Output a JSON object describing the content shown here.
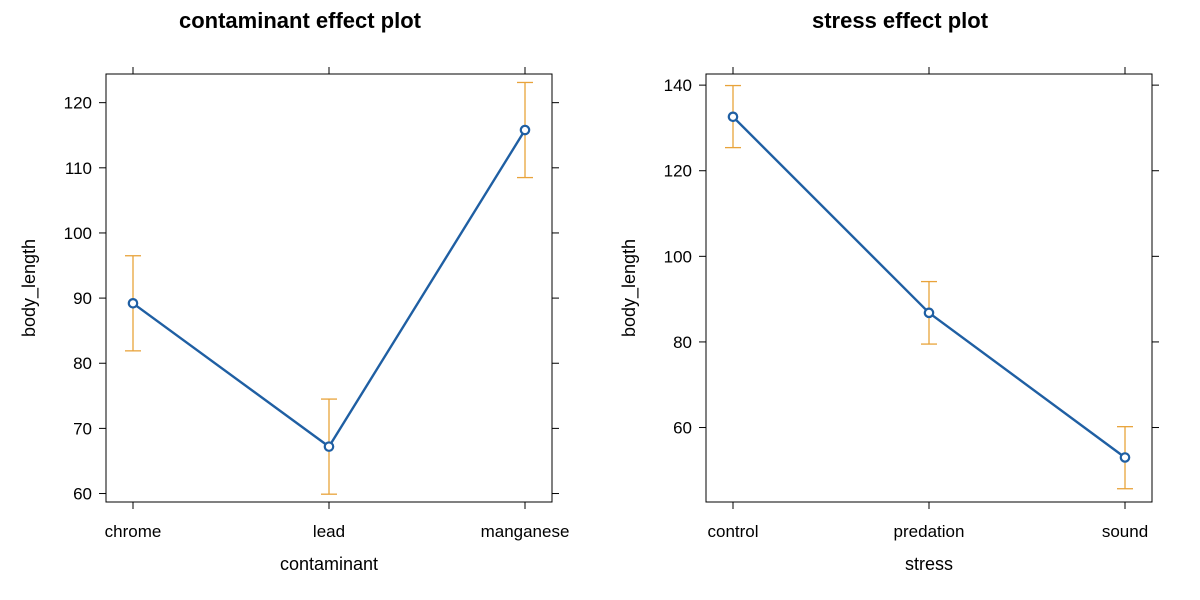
{
  "colors": {
    "line": "#1f5fa3",
    "errorbar": "#e8a33a",
    "frame": "#000000",
    "background": "#ffffff"
  },
  "chart_data": [
    {
      "type": "line",
      "title": "contaminant effect plot",
      "xlabel": "contaminant",
      "ylabel": "body_length",
      "categories": [
        "chrome",
        "lead",
        "manganese"
      ],
      "series": [
        {
          "values": [
            89.2,
            67.2,
            115.8
          ],
          "lower": [
            81.9,
            59.9,
            108.5
          ],
          "upper": [
            96.5,
            74.5,
            123.1
          ]
        }
      ],
      "yticks": [
        60,
        70,
        80,
        90,
        100,
        110,
        120
      ],
      "ylim": [
        58.7,
        124.4
      ],
      "grid": false,
      "legend": "none"
    },
    {
      "type": "line",
      "title": "stress effect plot",
      "xlabel": "stress",
      "ylabel": "body_length",
      "categories": [
        "control",
        "predation",
        "sound"
      ],
      "series": [
        {
          "values": [
            132.6,
            86.8,
            53.0
          ],
          "lower": [
            125.4,
            79.5,
            45.7
          ],
          "upper": [
            139.9,
            94.1,
            60.2
          ]
        }
      ],
      "yticks": [
        60,
        80,
        100,
        120,
        140
      ],
      "ylim": [
        42.6,
        142.6
      ],
      "grid": false,
      "legend": "none"
    }
  ]
}
